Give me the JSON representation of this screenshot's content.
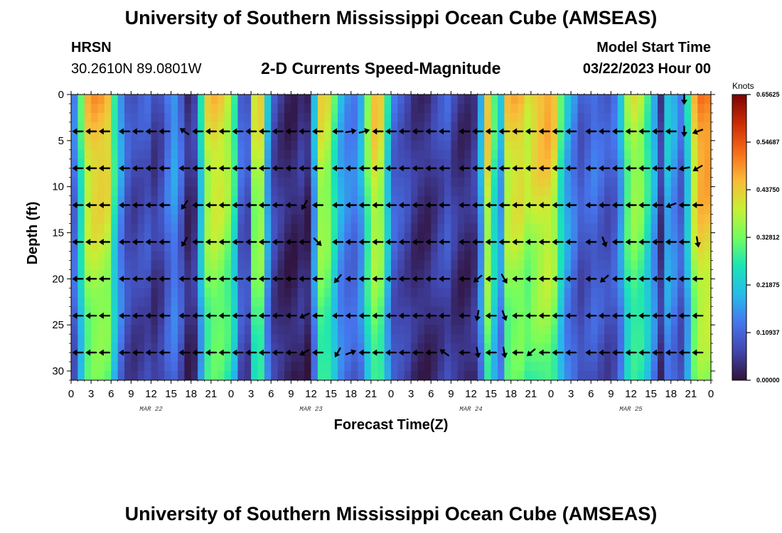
{
  "header": {
    "main_title": "University of Southern Mississippi Ocean Cube (AMSEAS)",
    "station_name": "HRSN",
    "station_coords": "30.2610N  89.0801W",
    "plot_title": "2-D Currents Speed-Magnitude",
    "model_start_label": "Model Start Time",
    "model_start_value": "03/22/2023 Hour 00"
  },
  "footer": {
    "repeated_title": "University of Southern Mississippi Ocean Cube (AMSEAS)"
  },
  "chart_data": {
    "type": "heatmap",
    "title": "2-D Currents Speed-Magnitude",
    "xlabel": "Forecast Time(Z)",
    "ylabel": "Depth (ft)",
    "xlim": [
      0,
      96
    ],
    "ylim": [
      31,
      0
    ],
    "x_ticks": [
      0,
      3,
      6,
      9,
      12,
      15,
      18,
      21,
      24,
      27,
      30,
      33,
      36,
      39,
      42,
      45,
      48,
      51,
      54,
      57,
      60,
      63,
      66,
      69,
      72,
      75,
      78,
      81,
      84,
      87,
      90,
      93,
      96
    ],
    "x_tick_labels": [
      "0",
      "3",
      "6",
      "9",
      "12",
      "15",
      "18",
      "21",
      "0",
      "3",
      "6",
      "9",
      "12",
      "15",
      "18",
      "21",
      "0",
      "3",
      "6",
      "9",
      "12",
      "15",
      "18",
      "21",
      "0",
      "3",
      "6",
      "9",
      "12",
      "15",
      "18",
      "21",
      "0"
    ],
    "y_ticks": [
      0,
      5,
      10,
      15,
      20,
      25,
      30
    ],
    "y_tick_labels": [
      "0",
      "5",
      "10",
      "15",
      "20",
      "25",
      "30"
    ],
    "day_labels": [
      {
        "x": 12,
        "text": "MAR 22"
      },
      {
        "x": 36,
        "text": "MAR 23"
      },
      {
        "x": 60,
        "text": "MAR 24"
      },
      {
        "x": 84,
        "text": "MAR 25"
      }
    ],
    "colorbar": {
      "unit": "Knots",
      "min": 0,
      "max": 0.65625,
      "tick_values": [
        0.0,
        0.109375,
        0.21875,
        0.328125,
        0.4375,
        0.546875,
        0.65625
      ],
      "tick_labels": [
        "0.00000",
        "0.10937",
        "0.21875",
        "0.32812",
        "0.43750",
        "0.54687",
        "0.65625"
      ]
    },
    "speed_profile_hours": [
      0,
      1,
      2,
      3,
      4,
      5,
      6,
      7,
      8,
      9,
      10,
      11,
      12,
      13,
      14,
      15,
      16,
      17,
      18,
      19,
      20,
      21,
      22,
      23,
      24,
      25,
      26,
      27,
      28,
      29,
      30,
      31,
      32,
      33,
      34,
      35,
      36,
      37,
      38,
      39,
      40,
      41,
      42,
      43,
      44,
      45,
      46,
      47,
      48,
      49,
      50,
      51,
      52,
      53,
      54,
      55,
      56,
      57,
      58,
      59,
      60,
      61,
      62,
      63,
      64,
      65,
      66,
      67,
      68,
      69,
      70,
      71,
      72,
      73,
      74,
      75,
      76,
      77,
      78,
      79,
      80,
      81,
      82,
      83,
      84,
      85,
      86,
      87,
      88,
      89,
      90,
      91,
      92,
      93,
      94,
      95,
      96
    ],
    "speed_profile_knots": [
      0.14,
      0.3,
      0.45,
      0.48,
      0.48,
      0.46,
      0.3,
      0.18,
      0.1,
      0.08,
      0.09,
      0.1,
      0.06,
      0.08,
      0.14,
      0.18,
      0.12,
      0.04,
      0.06,
      0.25,
      0.42,
      0.45,
      0.44,
      0.4,
      0.3,
      0.12,
      0.1,
      0.4,
      0.42,
      0.2,
      0.08,
      0.05,
      0.03,
      0.03,
      0.05,
      0.03,
      0.2,
      0.42,
      0.4,
      0.3,
      0.2,
      0.16,
      0.15,
      0.2,
      0.35,
      0.45,
      0.42,
      0.25,
      0.12,
      0.1,
      0.08,
      0.05,
      0.04,
      0.04,
      0.06,
      0.08,
      0.1,
      0.06,
      0.04,
      0.04,
      0.06,
      0.2,
      0.45,
      0.3,
      0.2,
      0.44,
      0.46,
      0.46,
      0.42,
      0.45,
      0.47,
      0.48,
      0.44,
      0.3,
      0.2,
      0.15,
      0.1,
      0.12,
      0.14,
      0.12,
      0.1,
      0.12,
      0.2,
      0.35,
      0.4,
      0.38,
      0.3,
      0.2,
      0.06,
      0.22,
      0.18,
      0.12,
      0.25,
      0.45,
      0.52,
      0.52,
      0.45
    ],
    "arrow_depths_ft": [
      4,
      8,
      12,
      16,
      20,
      24,
      28
    ],
    "arrow_hours": [
      1,
      3,
      5,
      8,
      10,
      12,
      14,
      17,
      19,
      21,
      23,
      25,
      27,
      29,
      31,
      33,
      35,
      37,
      40,
      42,
      44,
      46,
      48,
      50,
      52,
      54,
      56,
      59,
      61,
      63,
      65,
      67,
      69,
      71,
      73,
      75,
      78,
      80,
      82,
      84,
      86,
      88,
      90,
      92,
      94
    ],
    "arrow_direction_default": "west",
    "arrow_angles_deg_note": "0 = pointing east, 180 = pointing west, clockwise positive (screen coordinates)",
    "arrow_overrides": [
      {
        "hour": 17,
        "depth": 4,
        "angle": 215
      },
      {
        "hour": 17,
        "depth": 12,
        "angle": 125
      },
      {
        "hour": 17,
        "depth": 16,
        "angle": 120
      },
      {
        "hour": 35,
        "depth": 12,
        "angle": 120
      },
      {
        "hour": 37,
        "depth": 16,
        "angle": 45
      },
      {
        "hour": 42,
        "depth": 4,
        "angle": 350
      },
      {
        "hour": 44,
        "depth": 4,
        "angle": 345
      },
      {
        "hour": 42,
        "depth": 28,
        "angle": 340
      },
      {
        "hour": 35,
        "depth": 24,
        "angle": 155
      },
      {
        "hour": 35,
        "depth": 28,
        "angle": 150
      },
      {
        "hour": 40,
        "depth": 20,
        "angle": 130
      },
      {
        "hour": 40,
        "depth": 28,
        "angle": 120
      },
      {
        "hour": 56,
        "depth": 28,
        "angle": 215
      },
      {
        "hour": 61,
        "depth": 20,
        "angle": 140
      },
      {
        "hour": 61,
        "depth": 24,
        "angle": 100
      },
      {
        "hour": 61,
        "depth": 28,
        "angle": 80
      },
      {
        "hour": 65,
        "depth": 20,
        "angle": 60
      },
      {
        "hour": 65,
        "depth": 24,
        "angle": 70
      },
      {
        "hour": 65,
        "depth": 28,
        "angle": 80
      },
      {
        "hour": 69,
        "depth": 28,
        "angle": 140
      },
      {
        "hour": 80,
        "depth": 20,
        "angle": 140
      },
      {
        "hour": 80,
        "depth": 16,
        "angle": 70
      },
      {
        "hour": 92,
        "depth": 4,
        "angle": 90
      },
      {
        "hour": 94,
        "depth": 4,
        "angle": 160
      },
      {
        "hour": 90,
        "depth": 12,
        "angle": 160
      },
      {
        "hour": 88,
        "depth": 12,
        "angle": 180
      },
      {
        "hour": 94,
        "depth": 16,
        "angle": 80
      },
      {
        "hour": 94,
        "depth": 8,
        "angle": 150
      },
      {
        "hour": 92,
        "depth": 8,
        "angle": 170
      }
    ],
    "top_row_arrows": [
      {
        "hour": 92,
        "angle": 90
      }
    ]
  }
}
